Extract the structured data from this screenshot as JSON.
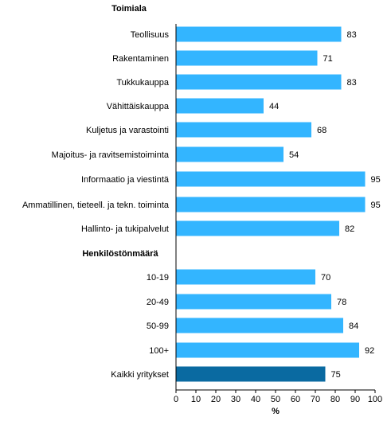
{
  "chart_data": {
    "type": "bar",
    "orientation": "horizontal",
    "xlabel": "%",
    "xlim": [
      0,
      100
    ],
    "xticks": [
      "0",
      "10",
      "20",
      "30",
      "40",
      "50",
      "60",
      "70",
      "80",
      "90",
      "100"
    ],
    "groups": [
      {
        "title": "Toimiala",
        "categories": [
          "Teollisuus",
          "Rakentaminen",
          "Tukkukauppa",
          "Vähittäiskauppa",
          "Kuljetus ja varastointi",
          "Majoitus- ja ravitsemistoiminta",
          "Informaatio ja viestintä",
          "Ammatillinen, tieteell. ja tekn. toiminta",
          "Hallinto- ja tukipalvelut"
        ],
        "values": [
          83,
          71,
          83,
          44,
          68,
          54,
          95,
          95,
          82
        ]
      },
      {
        "title": "Henkilöstönmäärä",
        "categories": [
          "10-19",
          "20-49",
          "50-99",
          "100+",
          "Kaikki yritykset"
        ],
        "values": [
          70,
          78,
          84,
          92,
          75
        ]
      }
    ],
    "highlight_category": "Kaikki yritykset",
    "colors": {
      "bar": "#33b5ff",
      "highlight": "#0a6aa1",
      "axis": "#000000"
    }
  }
}
